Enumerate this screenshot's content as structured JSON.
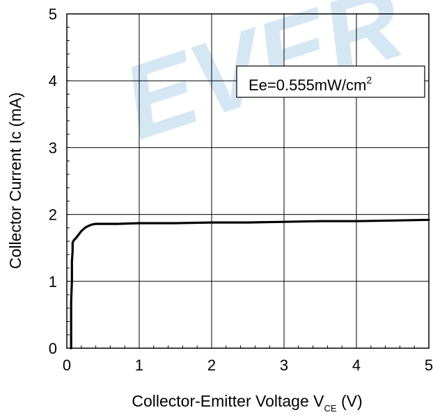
{
  "chart_data": {
    "type": "line",
    "xlabel": "Collector-Emitter Voltage V",
    "xlabel_subscript": "CE",
    "xlabel_suffix": " (V)",
    "ylabel": "Collector Current Ic (mA)",
    "xlim": [
      0,
      5
    ],
    "ylim": [
      0,
      5
    ],
    "xticks": [
      "0",
      "1",
      "2",
      "3",
      "4",
      "5"
    ],
    "yticks": [
      "0",
      "1",
      "2",
      "3",
      "4",
      "5"
    ],
    "grid": true,
    "legend": {
      "text": "Ee=0.555mW/cm",
      "superscript": "2",
      "placement": "top-right"
    },
    "watermark": "EVER",
    "series": [
      {
        "x": [
          0.06,
          0.06,
          0.07,
          0.07,
          0.08,
          0.08,
          0.1,
          0.12,
          0.15,
          0.2,
          0.25,
          0.3,
          0.35,
          0.4,
          0.5,
          0.7,
          1.0,
          1.5,
          2.0,
          2.5,
          3.0,
          3.5,
          4.0,
          4.5,
          5.0
        ],
        "y": [
          0.0,
          0.7,
          1.0,
          1.3,
          1.45,
          1.58,
          1.62,
          1.64,
          1.68,
          1.75,
          1.8,
          1.83,
          1.85,
          1.86,
          1.86,
          1.86,
          1.87,
          1.87,
          1.88,
          1.88,
          1.89,
          1.9,
          1.9,
          1.91,
          1.92
        ]
      }
    ]
  }
}
